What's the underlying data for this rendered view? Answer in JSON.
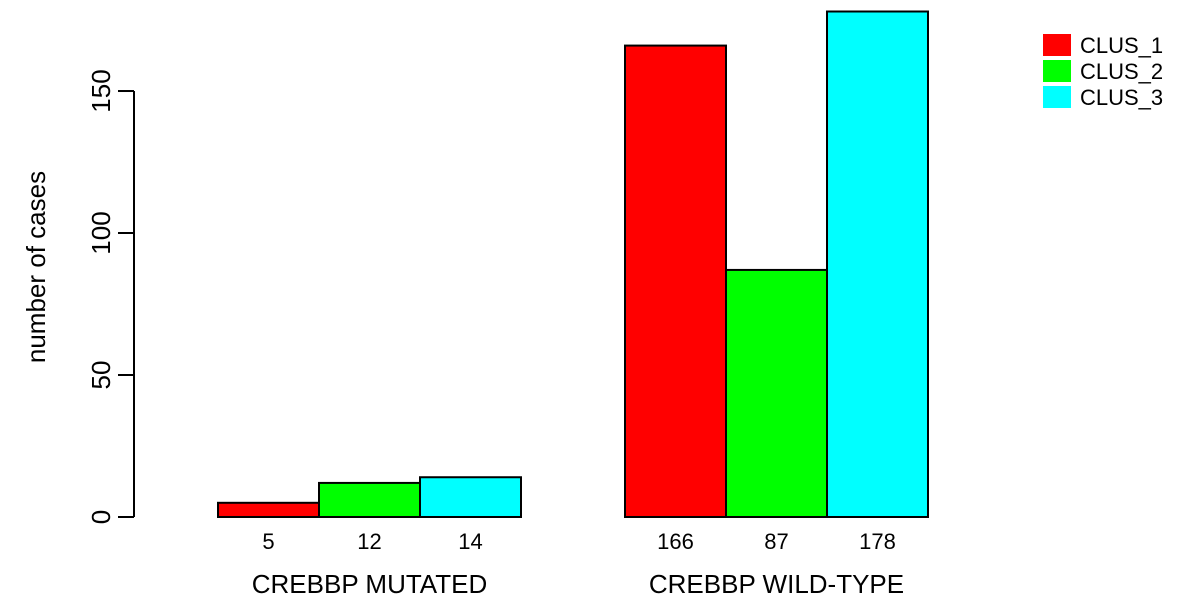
{
  "chart_data": {
    "type": "bar",
    "ylabel": "number of cases",
    "yticks": [
      0,
      50,
      100,
      150
    ],
    "ylim": [
      0,
      178
    ],
    "groups": [
      "CREBBP MUTATED",
      "CREBBP WILD-TYPE"
    ],
    "series": [
      {
        "name": "CLUS_1",
        "color": "#ff0000",
        "values": [
          5,
          166
        ]
      },
      {
        "name": "CLUS_2",
        "color": "#00ff00",
        "values": [
          12,
          87
        ]
      },
      {
        "name": "CLUS_3",
        "color": "#00ffff",
        "values": [
          14,
          178
        ]
      }
    ],
    "bar_labels": [
      [
        "5",
        "12",
        "14"
      ],
      [
        "166",
        "87",
        "178"
      ]
    ],
    "legend_position": "top-right",
    "grid": false
  }
}
